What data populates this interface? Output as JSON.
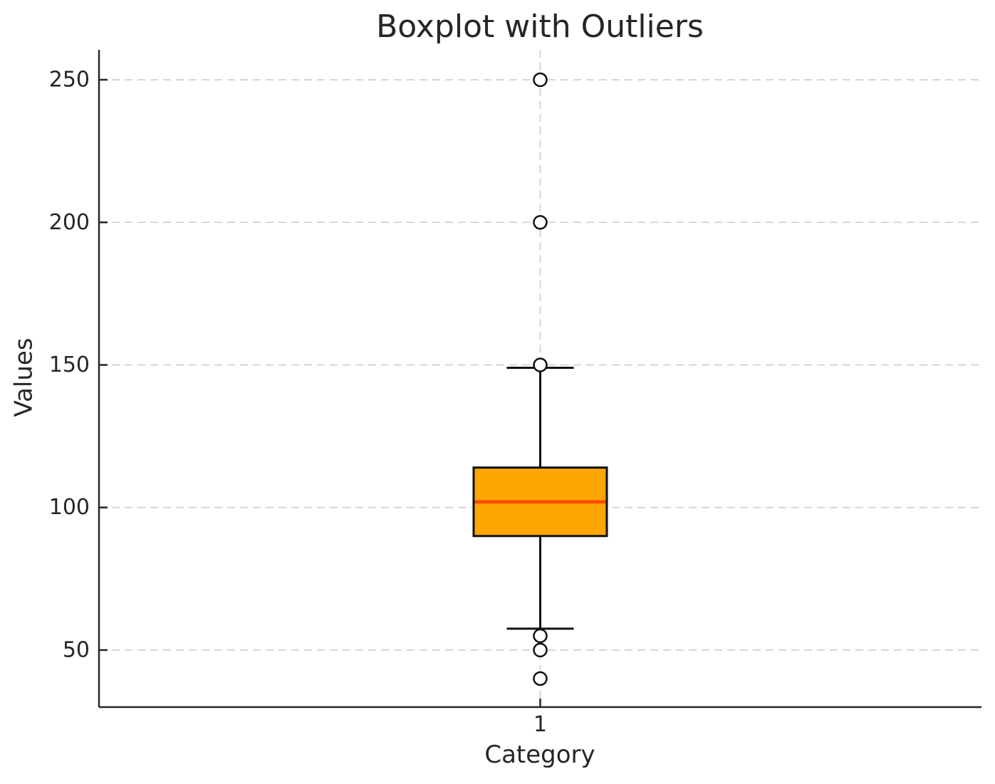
{
  "figure": {
    "background": "#ffffff"
  },
  "chart_data": {
    "type": "boxplot",
    "title": "Boxplot with Outliers",
    "xlabel": "Category",
    "ylabel": "Values",
    "categories": [
      "1"
    ],
    "yticks": [
      50,
      100,
      150,
      200,
      250
    ],
    "ylim": [
      30,
      260.5
    ],
    "grid": true,
    "grid_style": "dashed",
    "legend": "none",
    "series": [
      {
        "name": "1",
        "q1": 90,
        "median": 102,
        "q3": 114,
        "whisker_low": 57.5,
        "whisker_high": 149,
        "outliers": [
          250,
          200,
          150,
          55,
          50,
          40
        ]
      }
    ],
    "colors": {
      "box_fill": "#FFA500",
      "median_line": "#FF4500",
      "stroke": "#111111",
      "grid": "#cdcdcd",
      "text": "#262626",
      "spine": "#262626",
      "flier_fill": "#ffffff"
    }
  }
}
